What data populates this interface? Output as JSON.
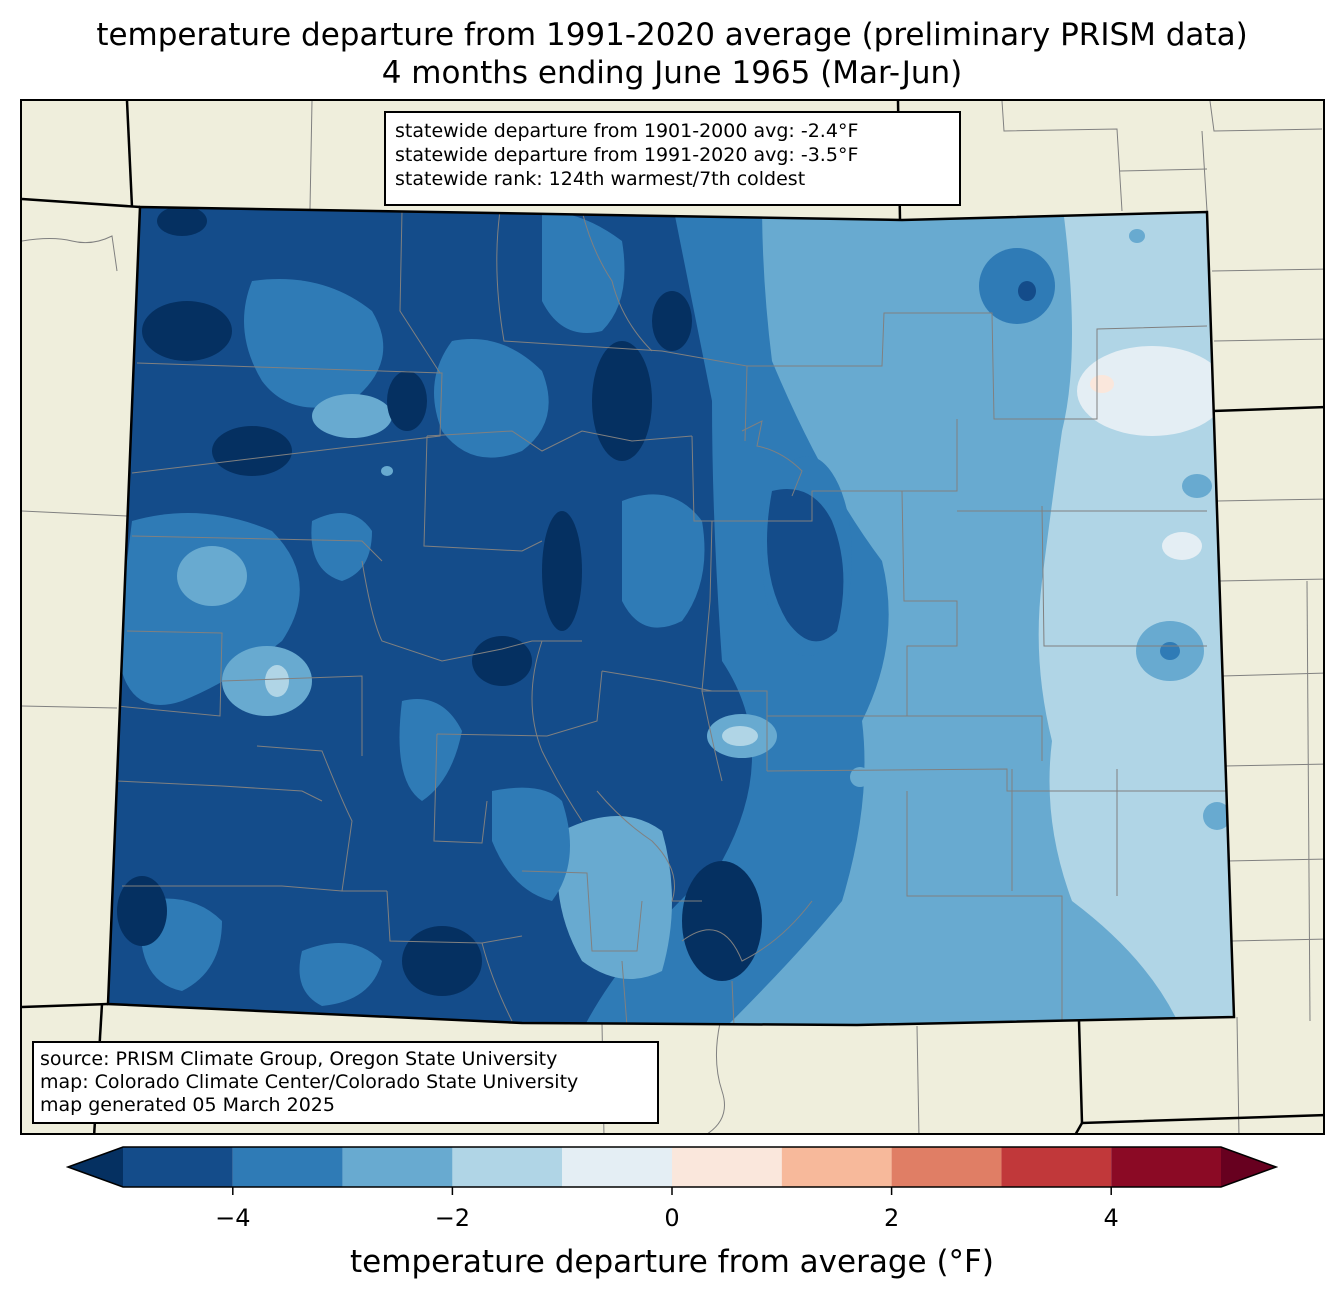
{
  "title": {
    "line1": "temperature departure from 1991-2020 average (preliminary PRISM data)",
    "line2": "4 months ending June 1965 (Mar-Jun)"
  },
  "stats": {
    "line1": "statewide departure from 1901-2000 avg: -2.4°F",
    "line2": "statewide departure from 1991-2020 avg: -3.5°F",
    "line3": "statewide rank: 124th warmest/7th coldest"
  },
  "source": {
    "line1": "source: PRISM Climate Group, Oregon State University",
    "line2": "map: Colorado Climate Center/Colorado State University",
    "line3": "map generated 05 March 2025"
  },
  "colorbar": {
    "label": "temperature departure from average (°F)",
    "min": -5,
    "max": 5,
    "ticks": [
      {
        "value": -4,
        "label": "−4"
      },
      {
        "value": -2,
        "label": "−2"
      },
      {
        "value": 0,
        "label": "0"
      },
      {
        "value": 2,
        "label": "2"
      },
      {
        "value": 4,
        "label": "4"
      }
    ],
    "under_color": "#053061",
    "over_color": "#67001f",
    "bins": [
      {
        "from": -5,
        "to": -4,
        "color": "#144c8a"
      },
      {
        "from": -4,
        "to": -3,
        "color": "#2f7bb6"
      },
      {
        "from": -3,
        "to": -2,
        "color": "#68aad0"
      },
      {
        "from": -2,
        "to": -1,
        "color": "#b0d5e6"
      },
      {
        "from": -1,
        "to": 0,
        "color": "#e4eef4"
      },
      {
        "from": 0,
        "to": 1,
        "color": "#fae7dc"
      },
      {
        "from": 1,
        "to": 2,
        "color": "#f7b99b"
      },
      {
        "from": 2,
        "to": 3,
        "color": "#e07e65"
      },
      {
        "from": 3,
        "to": 4,
        "color": "#c1383a"
      },
      {
        "from": 4,
        "to": 5,
        "color": "#8b0a25"
      }
    ]
  },
  "map_colors": {
    "land": "#efeedc",
    "county_lines": "#808080",
    "state_lines": "#000000"
  }
}
